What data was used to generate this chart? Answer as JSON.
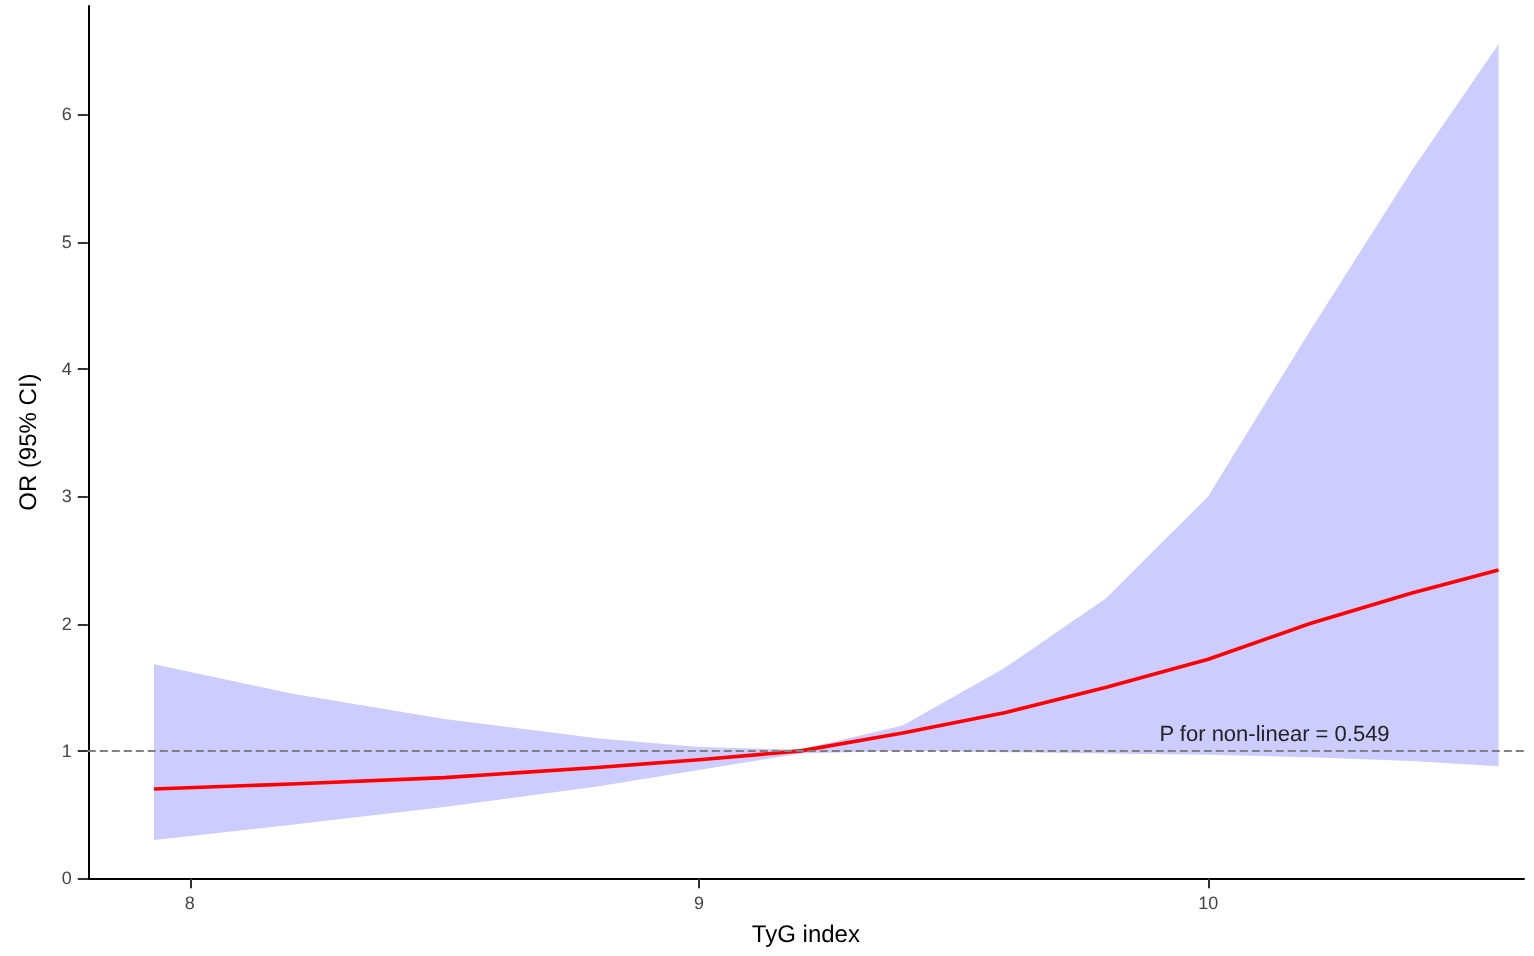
{
  "chart_data": {
    "type": "line",
    "xlabel": "TyG index",
    "ylabel": "OR (95% CI)",
    "x": [
      7.93,
      8.2,
      8.5,
      8.8,
      9.0,
      9.2,
      9.4,
      9.6,
      9.8,
      10.0,
      10.2,
      10.4,
      10.57
    ],
    "series": [
      {
        "color": "#ff0000",
        "values": [
          0.7,
          0.74,
          0.79,
          0.87,
          0.93,
          1.0,
          1.14,
          1.3,
          1.5,
          1.72,
          2.0,
          2.24,
          2.42
        ],
        "lower": [
          0.3,
          0.42,
          0.56,
          0.72,
          0.85,
          0.98,
          1.0,
          0.99,
          0.98,
          0.97,
          0.95,
          0.92,
          0.88
        ],
        "upper": [
          1.68,
          1.45,
          1.25,
          1.1,
          1.03,
          1.01,
          1.2,
          1.65,
          2.2,
          3.0,
          4.3,
          5.56,
          6.55
        ]
      }
    ],
    "xlim": [
      7.8,
      10.62
    ],
    "xticks": [
      8,
      9,
      10
    ],
    "ylim": [
      0,
      6.85
    ],
    "yticks": [
      0,
      1,
      2,
      3,
      4,
      5,
      6
    ],
    "ref_lines": [
      {
        "axis": "y",
        "value": 1,
        "color": "#808080",
        "line_style": "dashed"
      }
    ],
    "annotations": [
      "P for non-linear = 0.549"
    ],
    "line_style": "solid"
  }
}
